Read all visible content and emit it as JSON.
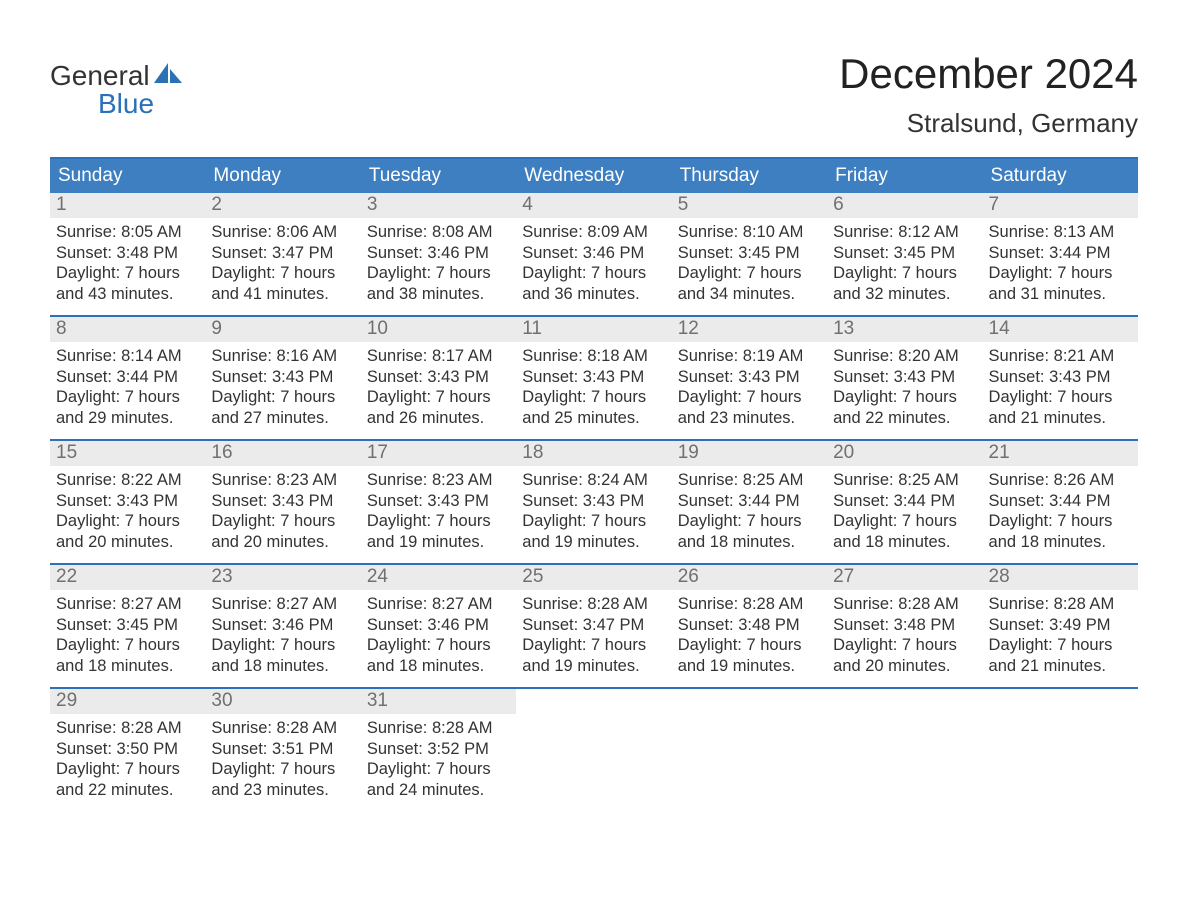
{
  "logo": {
    "word1": "General",
    "word2": "Blue",
    "sail_color": "#2a71b8",
    "word1_color": "#333333",
    "word2_color": "#2a71b8"
  },
  "title": {
    "month": "December 2024",
    "location": "Stralsund, Germany"
  },
  "colors": {
    "header_bg": "#3e7fc1",
    "header_text": "#ffffff",
    "week_border": "#2a71b8",
    "daynum_bg": "#ebebeb",
    "daynum_text": "#707070",
    "body_text": "#333333",
    "page_bg": "#ffffff"
  },
  "days_of_week": [
    "Sunday",
    "Monday",
    "Tuesday",
    "Wednesday",
    "Thursday",
    "Friday",
    "Saturday"
  ],
  "weeks": [
    [
      {
        "num": "1",
        "sunrise": "Sunrise: 8:05 AM",
        "sunset": "Sunset: 3:48 PM",
        "daylight1": "Daylight: 7 hours",
        "daylight2": "and 43 minutes."
      },
      {
        "num": "2",
        "sunrise": "Sunrise: 8:06 AM",
        "sunset": "Sunset: 3:47 PM",
        "daylight1": "Daylight: 7 hours",
        "daylight2": "and 41 minutes."
      },
      {
        "num": "3",
        "sunrise": "Sunrise: 8:08 AM",
        "sunset": "Sunset: 3:46 PM",
        "daylight1": "Daylight: 7 hours",
        "daylight2": "and 38 minutes."
      },
      {
        "num": "4",
        "sunrise": "Sunrise: 8:09 AM",
        "sunset": "Sunset: 3:46 PM",
        "daylight1": "Daylight: 7 hours",
        "daylight2": "and 36 minutes."
      },
      {
        "num": "5",
        "sunrise": "Sunrise: 8:10 AM",
        "sunset": "Sunset: 3:45 PM",
        "daylight1": "Daylight: 7 hours",
        "daylight2": "and 34 minutes."
      },
      {
        "num": "6",
        "sunrise": "Sunrise: 8:12 AM",
        "sunset": "Sunset: 3:45 PM",
        "daylight1": "Daylight: 7 hours",
        "daylight2": "and 32 minutes."
      },
      {
        "num": "7",
        "sunrise": "Sunrise: 8:13 AM",
        "sunset": "Sunset: 3:44 PM",
        "daylight1": "Daylight: 7 hours",
        "daylight2": "and 31 minutes."
      }
    ],
    [
      {
        "num": "8",
        "sunrise": "Sunrise: 8:14 AM",
        "sunset": "Sunset: 3:44 PM",
        "daylight1": "Daylight: 7 hours",
        "daylight2": "and 29 minutes."
      },
      {
        "num": "9",
        "sunrise": "Sunrise: 8:16 AM",
        "sunset": "Sunset: 3:43 PM",
        "daylight1": "Daylight: 7 hours",
        "daylight2": "and 27 minutes."
      },
      {
        "num": "10",
        "sunrise": "Sunrise: 8:17 AM",
        "sunset": "Sunset: 3:43 PM",
        "daylight1": "Daylight: 7 hours",
        "daylight2": "and 26 minutes."
      },
      {
        "num": "11",
        "sunrise": "Sunrise: 8:18 AM",
        "sunset": "Sunset: 3:43 PM",
        "daylight1": "Daylight: 7 hours",
        "daylight2": "and 25 minutes."
      },
      {
        "num": "12",
        "sunrise": "Sunrise: 8:19 AM",
        "sunset": "Sunset: 3:43 PM",
        "daylight1": "Daylight: 7 hours",
        "daylight2": "and 23 minutes."
      },
      {
        "num": "13",
        "sunrise": "Sunrise: 8:20 AM",
        "sunset": "Sunset: 3:43 PM",
        "daylight1": "Daylight: 7 hours",
        "daylight2": "and 22 minutes."
      },
      {
        "num": "14",
        "sunrise": "Sunrise: 8:21 AM",
        "sunset": "Sunset: 3:43 PM",
        "daylight1": "Daylight: 7 hours",
        "daylight2": "and 21 minutes."
      }
    ],
    [
      {
        "num": "15",
        "sunrise": "Sunrise: 8:22 AM",
        "sunset": "Sunset: 3:43 PM",
        "daylight1": "Daylight: 7 hours",
        "daylight2": "and 20 minutes."
      },
      {
        "num": "16",
        "sunrise": "Sunrise: 8:23 AM",
        "sunset": "Sunset: 3:43 PM",
        "daylight1": "Daylight: 7 hours",
        "daylight2": "and 20 minutes."
      },
      {
        "num": "17",
        "sunrise": "Sunrise: 8:23 AM",
        "sunset": "Sunset: 3:43 PM",
        "daylight1": "Daylight: 7 hours",
        "daylight2": "and 19 minutes."
      },
      {
        "num": "18",
        "sunrise": "Sunrise: 8:24 AM",
        "sunset": "Sunset: 3:43 PM",
        "daylight1": "Daylight: 7 hours",
        "daylight2": "and 19 minutes."
      },
      {
        "num": "19",
        "sunrise": "Sunrise: 8:25 AM",
        "sunset": "Sunset: 3:44 PM",
        "daylight1": "Daylight: 7 hours",
        "daylight2": "and 18 minutes."
      },
      {
        "num": "20",
        "sunrise": "Sunrise: 8:25 AM",
        "sunset": "Sunset: 3:44 PM",
        "daylight1": "Daylight: 7 hours",
        "daylight2": "and 18 minutes."
      },
      {
        "num": "21",
        "sunrise": "Sunrise: 8:26 AM",
        "sunset": "Sunset: 3:44 PM",
        "daylight1": "Daylight: 7 hours",
        "daylight2": "and 18 minutes."
      }
    ],
    [
      {
        "num": "22",
        "sunrise": "Sunrise: 8:27 AM",
        "sunset": "Sunset: 3:45 PM",
        "daylight1": "Daylight: 7 hours",
        "daylight2": "and 18 minutes."
      },
      {
        "num": "23",
        "sunrise": "Sunrise: 8:27 AM",
        "sunset": "Sunset: 3:46 PM",
        "daylight1": "Daylight: 7 hours",
        "daylight2": "and 18 minutes."
      },
      {
        "num": "24",
        "sunrise": "Sunrise: 8:27 AM",
        "sunset": "Sunset: 3:46 PM",
        "daylight1": "Daylight: 7 hours",
        "daylight2": "and 18 minutes."
      },
      {
        "num": "25",
        "sunrise": "Sunrise: 8:28 AM",
        "sunset": "Sunset: 3:47 PM",
        "daylight1": "Daylight: 7 hours",
        "daylight2": "and 19 minutes."
      },
      {
        "num": "26",
        "sunrise": "Sunrise: 8:28 AM",
        "sunset": "Sunset: 3:48 PM",
        "daylight1": "Daylight: 7 hours",
        "daylight2": "and 19 minutes."
      },
      {
        "num": "27",
        "sunrise": "Sunrise: 8:28 AM",
        "sunset": "Sunset: 3:48 PM",
        "daylight1": "Daylight: 7 hours",
        "daylight2": "and 20 minutes."
      },
      {
        "num": "28",
        "sunrise": "Sunrise: 8:28 AM",
        "sunset": "Sunset: 3:49 PM",
        "daylight1": "Daylight: 7 hours",
        "daylight2": "and 21 minutes."
      }
    ],
    [
      {
        "num": "29",
        "sunrise": "Sunrise: 8:28 AM",
        "sunset": "Sunset: 3:50 PM",
        "daylight1": "Daylight: 7 hours",
        "daylight2": "and 22 minutes."
      },
      {
        "num": "30",
        "sunrise": "Sunrise: 8:28 AM",
        "sunset": "Sunset: 3:51 PM",
        "daylight1": "Daylight: 7 hours",
        "daylight2": "and 23 minutes."
      },
      {
        "num": "31",
        "sunrise": "Sunrise: 8:28 AM",
        "sunset": "Sunset: 3:52 PM",
        "daylight1": "Daylight: 7 hours",
        "daylight2": "and 24 minutes."
      },
      {
        "empty": true
      },
      {
        "empty": true
      },
      {
        "empty": true
      },
      {
        "empty": true
      }
    ]
  ]
}
